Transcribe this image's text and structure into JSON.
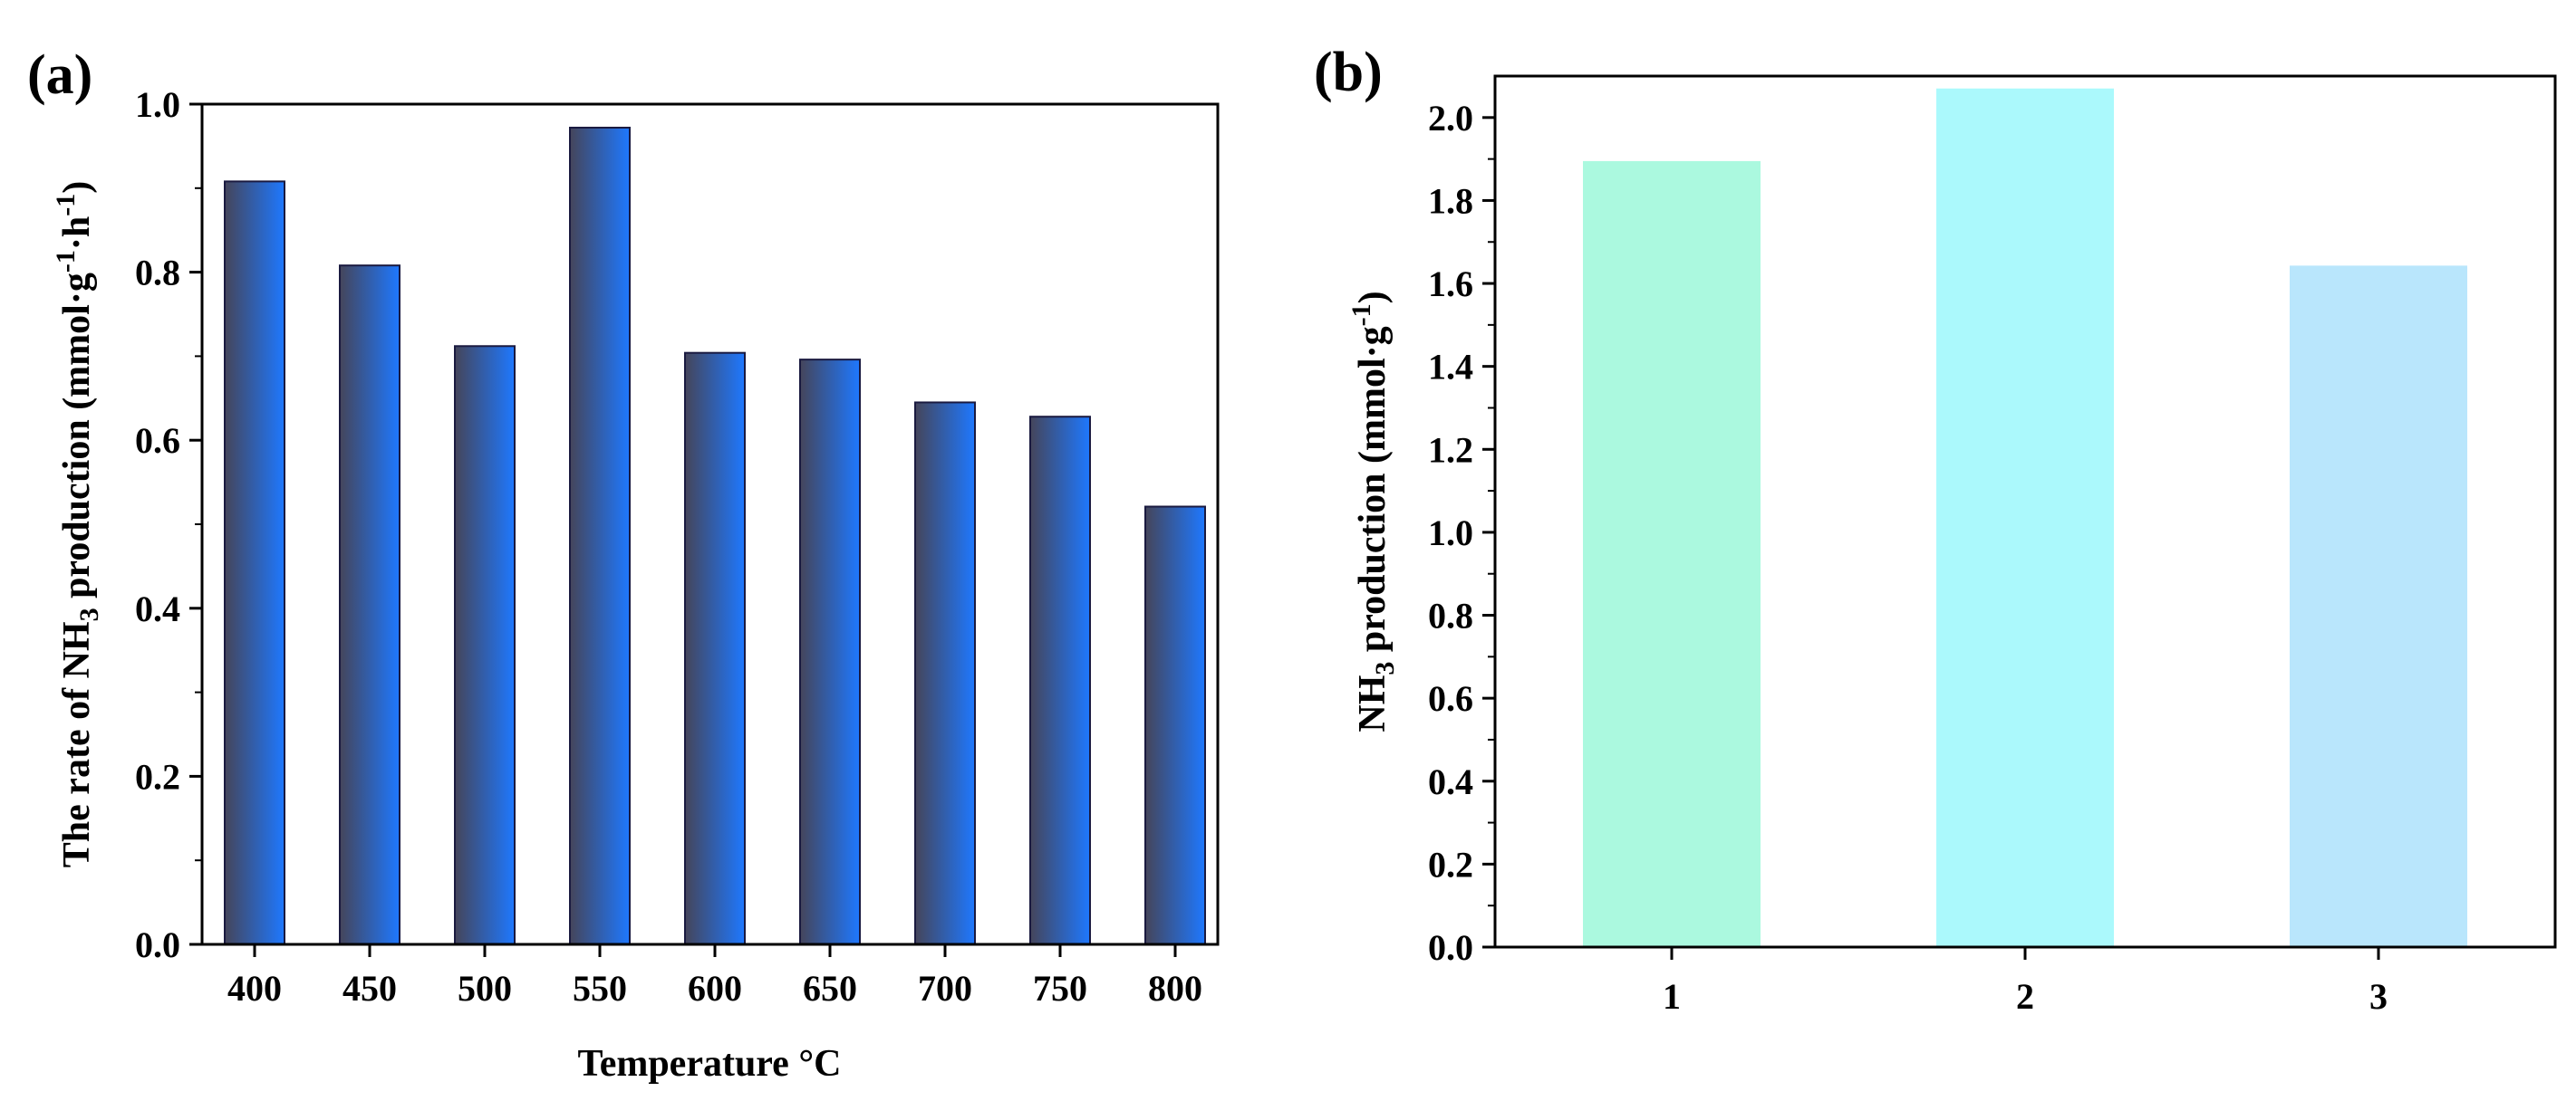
{
  "panels": [
    {
      "label": "(a)",
      "chart_data": {
        "type": "bar",
        "categories": [
          "400",
          "450",
          "500",
          "550",
          "600",
          "650",
          "700",
          "750",
          "800"
        ],
        "values": [
          0.908,
          0.808,
          0.712,
          0.972,
          0.704,
          0.696,
          0.645,
          0.628,
          0.521
        ],
        "xlabel": "Temperature °C",
        "ylabel": {
          "prefix": "The rate of NH",
          "sub": "3",
          "mid": " production (mmol·g",
          "sup1": "-1",
          "dot": "·h",
          "sup2": "-1",
          "suffix": ")"
        },
        "ylim": [
          0,
          1.0
        ],
        "yticks": [
          "0.0",
          "0.2",
          "0.4",
          "0.6",
          "0.8",
          "1.0"
        ],
        "grid": false,
        "colors": {
          "gradient_start": "#45455a",
          "gradient_end": "#1e78ff",
          "edge": "#1a1a40"
        }
      }
    },
    {
      "label": "(b)",
      "chart_data": {
        "type": "bar",
        "categories": [
          "1",
          "2",
          "3"
        ],
        "values": [
          1.895,
          2.07,
          1.643
        ],
        "xlabel": "",
        "ylabel": {
          "prefix": "NH",
          "sub": "3",
          "mid": " production (mmol·g",
          "sup1": "-1",
          "suffix": ")"
        },
        "ylim": [
          0,
          2.1
        ],
        "yticks": [
          "0.0",
          "0.2",
          "0.4",
          "0.6",
          "0.8",
          "1.0",
          "1.2",
          "1.4",
          "1.6",
          "1.8",
          "2.0"
        ],
        "grid": false,
        "colors": {
          "bars": [
            "#abf9df",
            "#abf9fc",
            "#b9e6fc"
          ]
        }
      }
    }
  ]
}
